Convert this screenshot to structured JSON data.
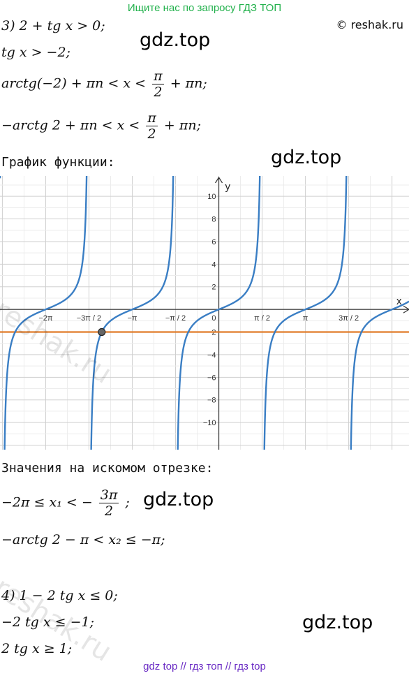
{
  "banner": "Ищите нас по запросу ГДЗ ТОП",
  "copyright": "© reshak.ru",
  "watermark": "gdz.top",
  "watermark_side": "reshak.ru",
  "footer": "gdz top  //  гдз топ  //  гдз top",
  "part3": {
    "line1": "3) 2 + tg x > 0;",
    "line2": "tg x > −2;",
    "line3_left": "arctg(−2) + πn < x <",
    "line3_right": "+ πn;",
    "line4_left": "−arctg 2 + πn < x <",
    "line4_right": "+ πn;",
    "frac_pi": "π",
    "frac_2": "2",
    "graph_caption": "График функции:"
  },
  "chart_data": {
    "type": "line",
    "function": "y = tg x",
    "xlabel": "x",
    "ylabel": "y",
    "x_ticks": [
      "−2π",
      "−3π / 2",
      "−π",
      "−π / 2",
      "0",
      "π / 2",
      "π",
      "3π / 2"
    ],
    "x_tick_values": [
      -6.2832,
      -4.7124,
      -3.1416,
      -1.5708,
      0,
      1.5708,
      3.1416,
      4.7124
    ],
    "y_ticks": [
      "10",
      "8",
      "6",
      "4",
      "2",
      "−2",
      "−4",
      "−6",
      "−8",
      "−10"
    ],
    "y_tick_values": [
      10,
      8,
      6,
      4,
      2,
      -2,
      -4,
      -6,
      -8,
      -10
    ],
    "xlim": [
      -7.94,
      6.9
    ],
    "ylim": [
      -12.4,
      11.8
    ],
    "horizontal_line": {
      "y": -2,
      "color": "#e07b28"
    },
    "curve_color": "#3a7ec4",
    "point": {
      "x": -4.249,
      "y": -2
    },
    "grid": true
  },
  "interval": {
    "caption": "Значения на искомом отрезке:",
    "line1_left": "−2π ≤ x₁ < −",
    "line1_num": "3π",
    "line1_den": "2",
    "line1_right": ";",
    "line2": "−arctg 2 − π < x₂ ≤ −π;"
  },
  "part4": {
    "line1": "4) 1 − 2 tg x ≤ 0;",
    "line2": "−2 tg x ≤ −1;",
    "line3": "2 tg x ≥ 1;"
  }
}
